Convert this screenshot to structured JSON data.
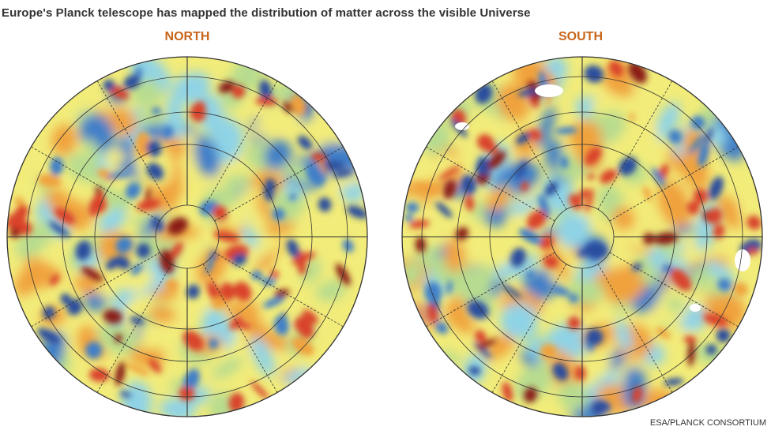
{
  "title": "Europe's Planck telescope has mapped the distribution of matter across the visible Universe",
  "hemispheres": [
    {
      "id": "north",
      "label": "NORTH"
    },
    {
      "id": "south",
      "label": "SOUTH"
    }
  ],
  "credit": "ESA/PLANCK CONSORTIUM",
  "colors": {
    "label": "#c8651a",
    "text": "#333333",
    "background_field": "#f2ec7a",
    "blue_dark": "#2c4d9e",
    "blue": "#3f7fc8",
    "cyan": "#8fd3e6",
    "green": "#b7dc8f",
    "orange": "#f0a23c",
    "red": "#d9422a",
    "red_dark": "#8a1f14"
  }
}
